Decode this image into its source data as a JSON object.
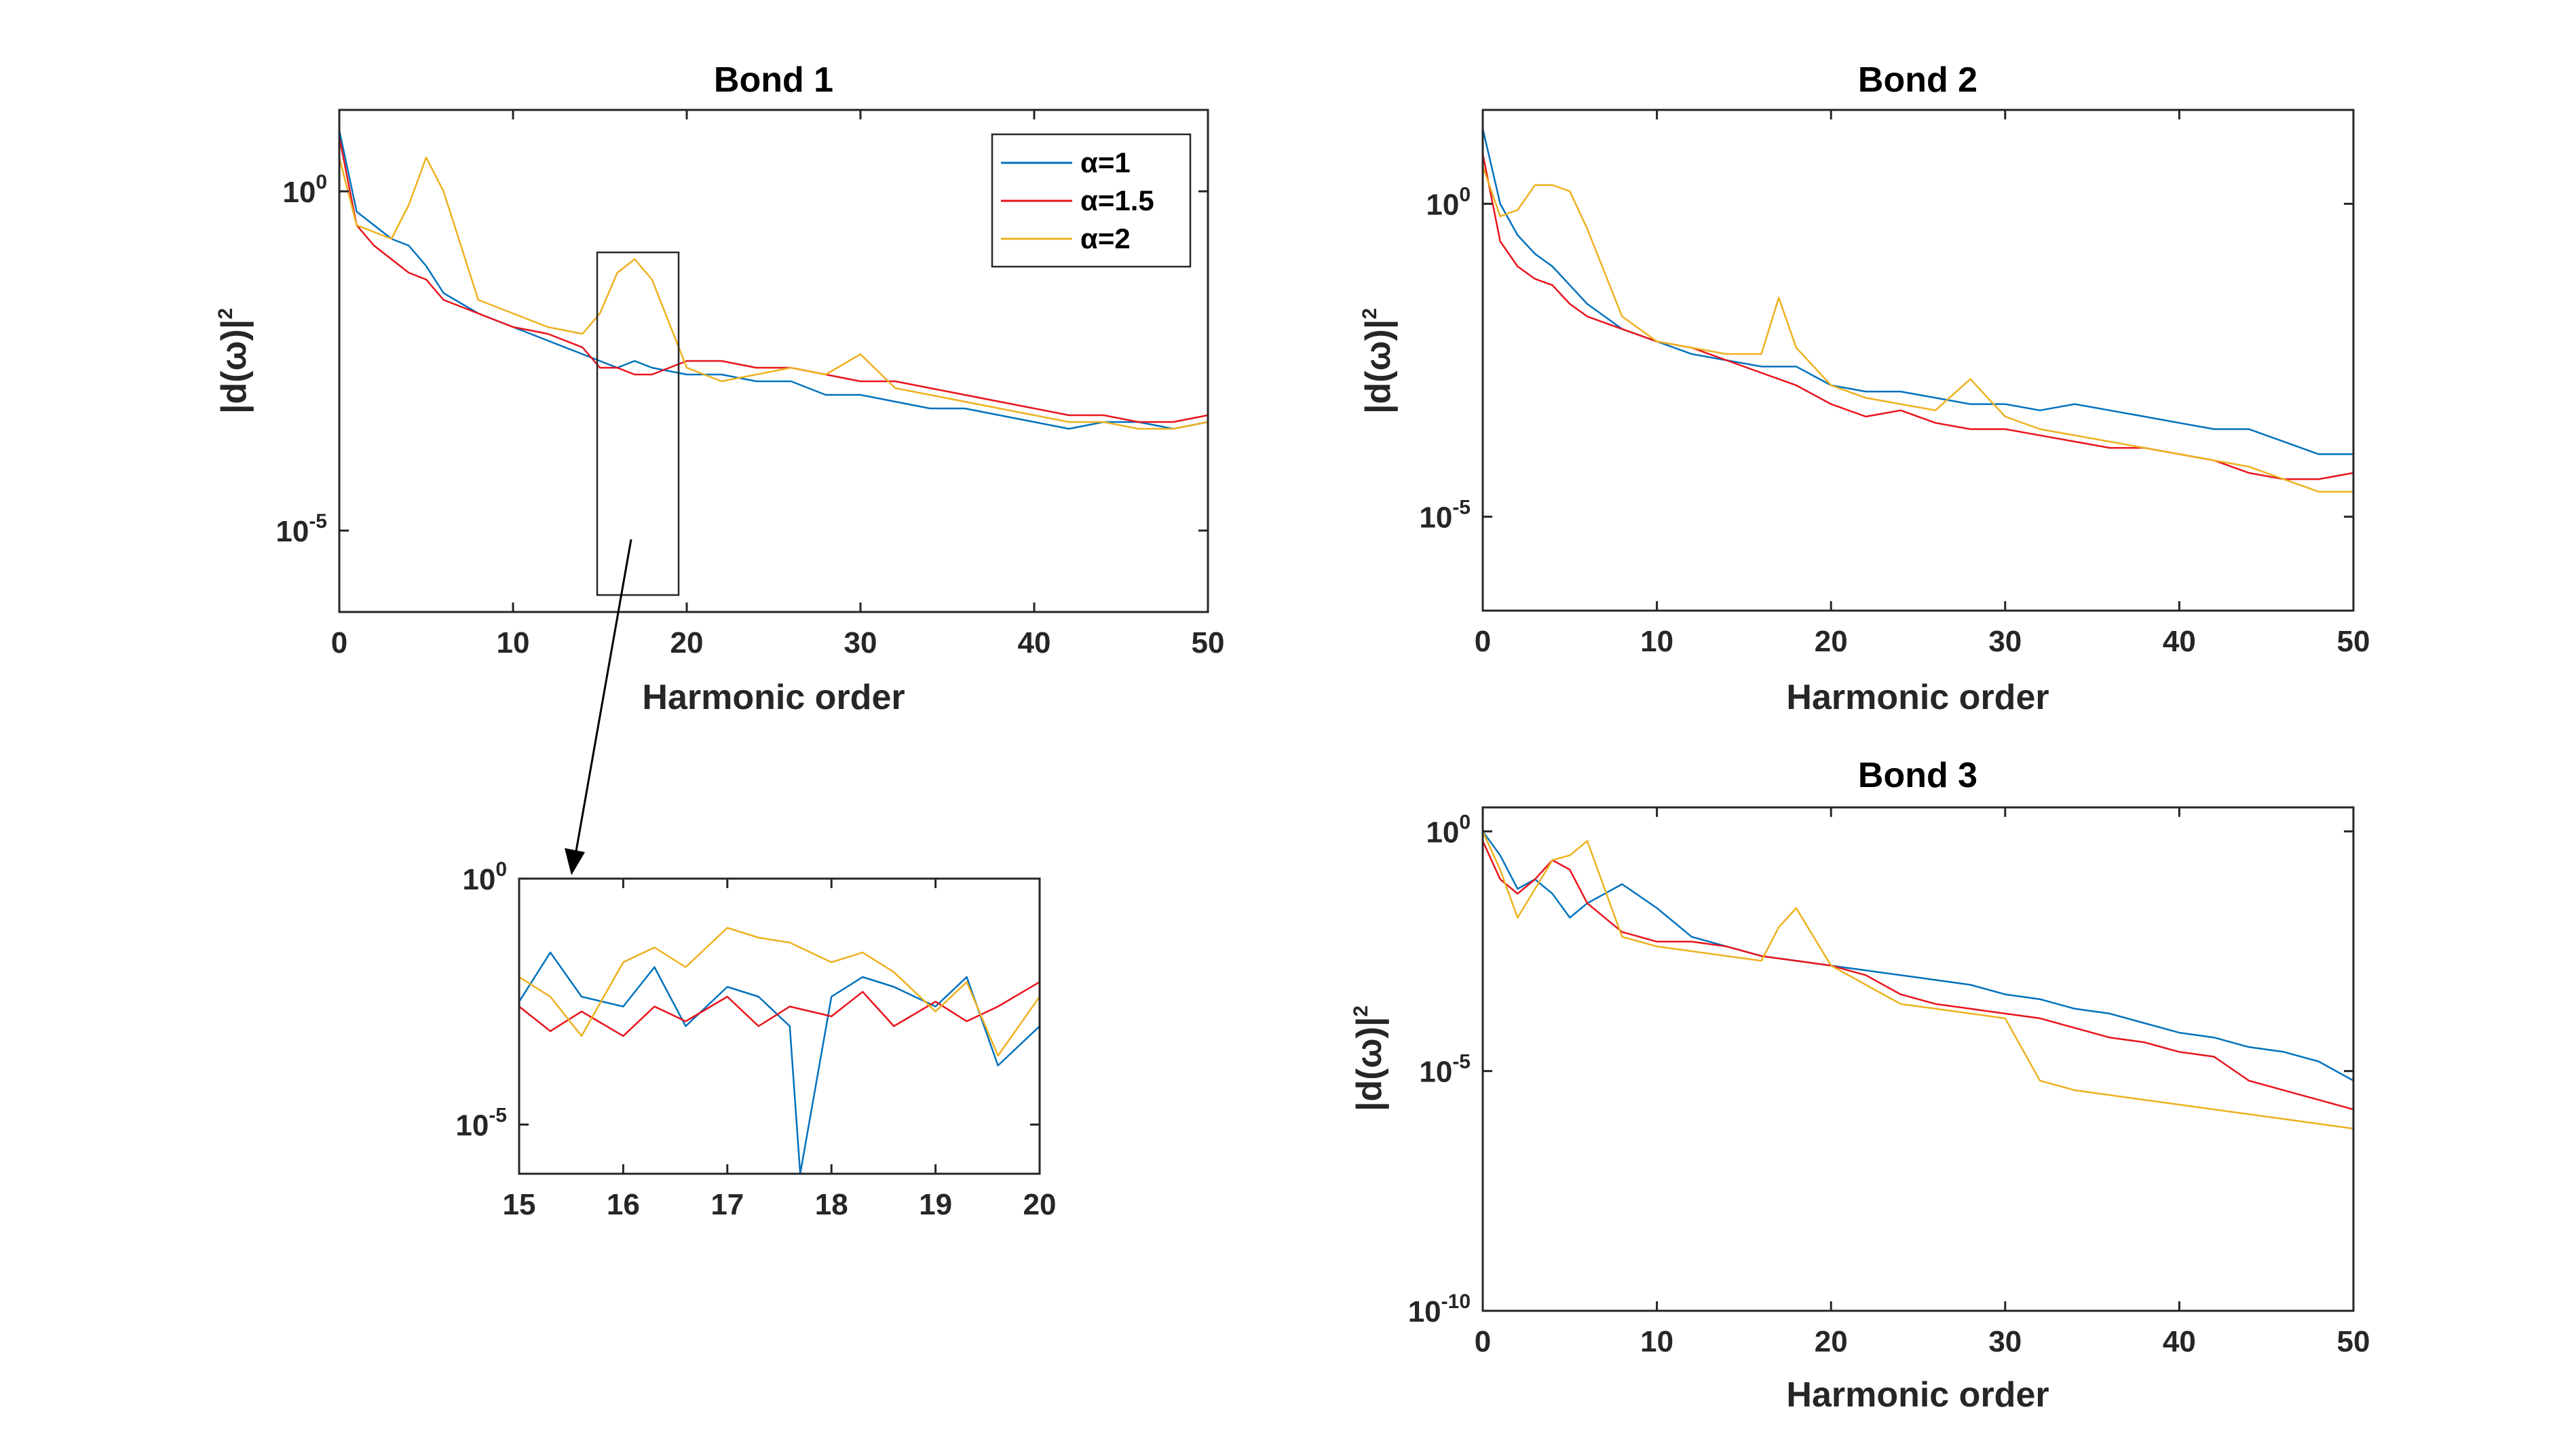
{
  "colors": {
    "alpha1": "#0072BD",
    "alpha15": "#E8141C",
    "alpha2": "#EDB120",
    "axis": "#262626"
  },
  "chart_data": [
    {
      "id": "bond1",
      "type": "line",
      "title": "Bond 1",
      "xlabel": "Harmonic order",
      "ylabel_main": "|d(ω)|",
      "ylabel_sup": "2",
      "xlim": [
        0,
        50
      ],
      "ylim_log10": [
        -6.2,
        1.2
      ],
      "log_y": true,
      "xticks": [
        "0",
        "10",
        "20",
        "30",
        "40",
        "50"
      ],
      "yticks": [
        {
          "base": "10",
          "exp": "0",
          "value": 0
        },
        {
          "base": "10",
          "exp": "-5",
          "value": -5
        }
      ],
      "legend": {
        "placement": "top-right",
        "entries": [
          "α=1",
          "α=1.5",
          "α=2"
        ]
      },
      "zoom_box": {
        "x": [
          15,
          19.5
        ],
        "y_log10": [
          -6.0,
          -0.9
        ]
      },
      "series": [
        {
          "name": "α=1",
          "color_key": "alpha1",
          "x": [
            0,
            1,
            2,
            3,
            4,
            5,
            6,
            8,
            10,
            12,
            14,
            15,
            16,
            17,
            18,
            20,
            22,
            24,
            26,
            28,
            30,
            32,
            34,
            36,
            38,
            40,
            42,
            44,
            46,
            48,
            50
          ],
          "log10_y": [
            0.9,
            -0.3,
            -0.5,
            -0.7,
            -0.8,
            -1.1,
            -1.5,
            -1.8,
            -2.0,
            -2.2,
            -2.4,
            -2.5,
            -2.6,
            -2.5,
            -2.6,
            -2.7,
            -2.7,
            -2.8,
            -2.8,
            -3.0,
            -3.0,
            -3.1,
            -3.2,
            -3.2,
            -3.3,
            -3.4,
            -3.5,
            -3.4,
            -3.4,
            -3.5,
            -3.4
          ]
        },
        {
          "name": "α=1.5",
          "color_key": "alpha15",
          "x": [
            0,
            1,
            2,
            3,
            4,
            5,
            6,
            8,
            10,
            12,
            14,
            15,
            16,
            17,
            18,
            20,
            22,
            24,
            26,
            28,
            30,
            32,
            34,
            36,
            38,
            40,
            42,
            44,
            46,
            48,
            50
          ],
          "log10_y": [
            0.8,
            -0.5,
            -0.8,
            -1.0,
            -1.2,
            -1.3,
            -1.6,
            -1.8,
            -2.0,
            -2.1,
            -2.3,
            -2.6,
            -2.6,
            -2.7,
            -2.7,
            -2.5,
            -2.5,
            -2.6,
            -2.6,
            -2.7,
            -2.8,
            -2.8,
            -2.9,
            -3.0,
            -3.1,
            -3.2,
            -3.3,
            -3.3,
            -3.4,
            -3.4,
            -3.3
          ]
        },
        {
          "name": "α=2",
          "color_key": "alpha2",
          "x": [
            0,
            1,
            2,
            3,
            4,
            5,
            6,
            8,
            10,
            12,
            14,
            15,
            16,
            17,
            18,
            20,
            22,
            24,
            26,
            28,
            30,
            32,
            34,
            36,
            38,
            40,
            42,
            44,
            46,
            48,
            50
          ],
          "log10_y": [
            0.5,
            -0.5,
            -0.6,
            -0.7,
            -0.2,
            0.5,
            0.0,
            -1.6,
            -1.8,
            -2.0,
            -2.1,
            -1.8,
            -1.2,
            -1.0,
            -1.3,
            -2.6,
            -2.8,
            -2.7,
            -2.6,
            -2.7,
            -2.4,
            -2.9,
            -3.0,
            -3.1,
            -3.2,
            -3.3,
            -3.4,
            -3.4,
            -3.5,
            -3.5,
            -3.4
          ]
        }
      ]
    },
    {
      "id": "zoom",
      "type": "line",
      "title": "",
      "xlabel": "",
      "xlim": [
        15,
        20
      ],
      "ylim_log10": [
        -6.0,
        0
      ],
      "log_y": true,
      "xticks": [
        "15",
        "16",
        "17",
        "18",
        "19",
        "20"
      ],
      "yticks": [
        {
          "base": "10",
          "exp": "0",
          "value": 0
        },
        {
          "base": "10",
          "exp": "-5",
          "value": -5
        }
      ],
      "series": [
        {
          "name": "α=1",
          "color_key": "alpha1",
          "x": [
            15,
            15.3,
            15.6,
            16,
            16.3,
            16.6,
            17,
            17.3,
            17.6,
            17.7,
            18,
            18.3,
            18.6,
            19,
            19.3,
            19.6,
            20
          ],
          "log10_y": [
            -2.5,
            -1.5,
            -2.4,
            -2.6,
            -1.8,
            -3.0,
            -2.2,
            -2.4,
            -3.0,
            -6.0,
            -2.4,
            -2.0,
            -2.2,
            -2.6,
            -2.0,
            -3.8,
            -3.0
          ]
        },
        {
          "name": "α=1.5",
          "color_key": "alpha15",
          "x": [
            15,
            15.3,
            15.6,
            16,
            16.3,
            16.6,
            17,
            17.3,
            17.6,
            18,
            18.3,
            18.6,
            19,
            19.3,
            19.6,
            20
          ],
          "log10_y": [
            -2.6,
            -3.1,
            -2.7,
            -3.2,
            -2.6,
            -2.9,
            -2.4,
            -3.0,
            -2.6,
            -2.8,
            -2.3,
            -3.0,
            -2.5,
            -2.9,
            -2.6,
            -2.1
          ]
        },
        {
          "name": "α=2",
          "color_key": "alpha2",
          "x": [
            15,
            15.3,
            15.6,
            16,
            16.3,
            16.6,
            17,
            17.3,
            17.6,
            18,
            18.3,
            18.6,
            19,
            19.3,
            19.6,
            20
          ],
          "log10_y": [
            -2.0,
            -2.4,
            -3.2,
            -1.7,
            -1.4,
            -1.8,
            -1.0,
            -1.2,
            -1.3,
            -1.7,
            -1.5,
            -1.9,
            -2.7,
            -2.1,
            -3.6,
            -2.4
          ]
        }
      ]
    },
    {
      "id": "bond2",
      "type": "line",
      "title": "Bond 2",
      "xlabel": "Harmonic order",
      "ylabel_main": "|d(ω)|",
      "ylabel_sup": "2",
      "xlim": [
        0,
        50
      ],
      "ylim_log10": [
        -6.5,
        1.5
      ],
      "log_y": true,
      "xticks": [
        "0",
        "10",
        "20",
        "30",
        "40",
        "50"
      ],
      "yticks": [
        {
          "base": "10",
          "exp": "0",
          "value": 0
        },
        {
          "base": "10",
          "exp": "-5",
          "value": -5
        }
      ],
      "series": [
        {
          "name": "α=1",
          "color_key": "alpha1",
          "x": [
            0,
            1,
            2,
            3,
            4,
            5,
            6,
            8,
            10,
            12,
            14,
            16,
            18,
            20,
            22,
            24,
            26,
            28,
            30,
            32,
            34,
            36,
            38,
            40,
            42,
            44,
            46,
            48,
            50
          ],
          "log10_y": [
            1.2,
            0.0,
            -0.5,
            -0.8,
            -1.0,
            -1.3,
            -1.6,
            -2.0,
            -2.2,
            -2.4,
            -2.5,
            -2.6,
            -2.6,
            -2.9,
            -3.0,
            -3.0,
            -3.1,
            -3.2,
            -3.2,
            -3.3,
            -3.2,
            -3.3,
            -3.4,
            -3.5,
            -3.6,
            -3.6,
            -3.8,
            -4.0,
            -4.0
          ]
        },
        {
          "name": "α=1.5",
          "color_key": "alpha15",
          "x": [
            0,
            1,
            2,
            3,
            4,
            5,
            6,
            8,
            10,
            12,
            14,
            16,
            18,
            20,
            22,
            24,
            26,
            28,
            30,
            32,
            34,
            36,
            38,
            40,
            42,
            44,
            46,
            48,
            50
          ],
          "log10_y": [
            0.8,
            -0.6,
            -1.0,
            -1.2,
            -1.3,
            -1.6,
            -1.8,
            -2.0,
            -2.2,
            -2.3,
            -2.5,
            -2.7,
            -2.9,
            -3.2,
            -3.4,
            -3.3,
            -3.5,
            -3.6,
            -3.6,
            -3.7,
            -3.8,
            -3.9,
            -3.9,
            -4.0,
            -4.1,
            -4.3,
            -4.4,
            -4.4,
            -4.3
          ]
        },
        {
          "name": "α=2",
          "color_key": "alpha2",
          "x": [
            0,
            1,
            2,
            3,
            4,
            5,
            6,
            8,
            10,
            12,
            14,
            16,
            17,
            18,
            20,
            22,
            24,
            26,
            28,
            30,
            32,
            34,
            36,
            38,
            40,
            42,
            44,
            46,
            48,
            50
          ],
          "log10_y": [
            0.6,
            -0.2,
            -0.1,
            0.3,
            0.3,
            0.2,
            -0.4,
            -1.8,
            -2.2,
            -2.3,
            -2.4,
            -2.4,
            -1.5,
            -2.3,
            -2.9,
            -3.1,
            -3.2,
            -3.3,
            -2.8,
            -3.4,
            -3.6,
            -3.7,
            -3.8,
            -3.9,
            -4.0,
            -4.1,
            -4.2,
            -4.4,
            -4.6,
            -4.6
          ]
        }
      ]
    },
    {
      "id": "bond3",
      "type": "line",
      "title": "Bond 3",
      "xlabel": "Harmonic order",
      "ylabel_main": "|d(ω)|",
      "ylabel_sup": "2",
      "xlim": [
        0,
        50
      ],
      "ylim_log10": [
        -10,
        0.5
      ],
      "log_y": true,
      "xticks": [
        "0",
        "10",
        "20",
        "30",
        "40",
        "50"
      ],
      "yticks": [
        {
          "base": "10",
          "exp": "0",
          "value": 0
        },
        {
          "base": "10",
          "exp": "-5",
          "value": -5
        },
        {
          "base": "10",
          "exp": "-10",
          "value": -10
        }
      ],
      "series": [
        {
          "name": "α=1",
          "color_key": "alpha1",
          "x": [
            0,
            1,
            2,
            3,
            4,
            5,
            6,
            8,
            10,
            12,
            14,
            16,
            18,
            20,
            22,
            24,
            26,
            28,
            30,
            32,
            34,
            36,
            38,
            40,
            42,
            44,
            46,
            48,
            50
          ],
          "log10_y": [
            0.0,
            -0.5,
            -1.2,
            -1.0,
            -1.3,
            -1.8,
            -1.5,
            -1.1,
            -1.6,
            -2.2,
            -2.4,
            -2.6,
            -2.7,
            -2.8,
            -2.9,
            -3.0,
            -3.1,
            -3.2,
            -3.4,
            -3.5,
            -3.7,
            -3.8,
            -4.0,
            -4.2,
            -4.3,
            -4.5,
            -4.6,
            -4.8,
            -5.2
          ]
        },
        {
          "name": "α=1.5",
          "color_key": "alpha15",
          "x": [
            0,
            1,
            2,
            3,
            4,
            5,
            6,
            8,
            10,
            12,
            14,
            16,
            18,
            20,
            22,
            24,
            26,
            28,
            30,
            32,
            34,
            36,
            38,
            40,
            42,
            44,
            46,
            48,
            50
          ],
          "log10_y": [
            -0.2,
            -1.0,
            -1.3,
            -1.0,
            -0.6,
            -0.8,
            -1.5,
            -2.1,
            -2.3,
            -2.3,
            -2.4,
            -2.6,
            -2.7,
            -2.8,
            -3.0,
            -3.4,
            -3.6,
            -3.7,
            -3.8,
            -3.9,
            -4.1,
            -4.3,
            -4.4,
            -4.6,
            -4.7,
            -5.2,
            -5.4,
            -5.6,
            -5.8
          ]
        },
        {
          "name": "α=2",
          "color_key": "alpha2",
          "x": [
            0,
            1,
            2,
            3,
            4,
            5,
            6,
            8,
            10,
            12,
            14,
            16,
            17,
            18,
            20,
            22,
            24,
            26,
            28,
            30,
            32,
            34,
            36,
            38,
            40,
            42,
            44,
            46,
            48,
            50
          ],
          "log10_y": [
            0.0,
            -0.8,
            -1.8,
            -1.2,
            -0.6,
            -0.5,
            -0.2,
            -2.2,
            -2.4,
            -2.5,
            -2.6,
            -2.7,
            -2.0,
            -1.6,
            -2.8,
            -3.2,
            -3.6,
            -3.7,
            -3.8,
            -3.9,
            -5.2,
            -5.4,
            -5.5,
            -5.6,
            -5.7,
            -5.8,
            -5.9,
            -6.0,
            -6.1,
            -6.2
          ]
        }
      ]
    }
  ]
}
